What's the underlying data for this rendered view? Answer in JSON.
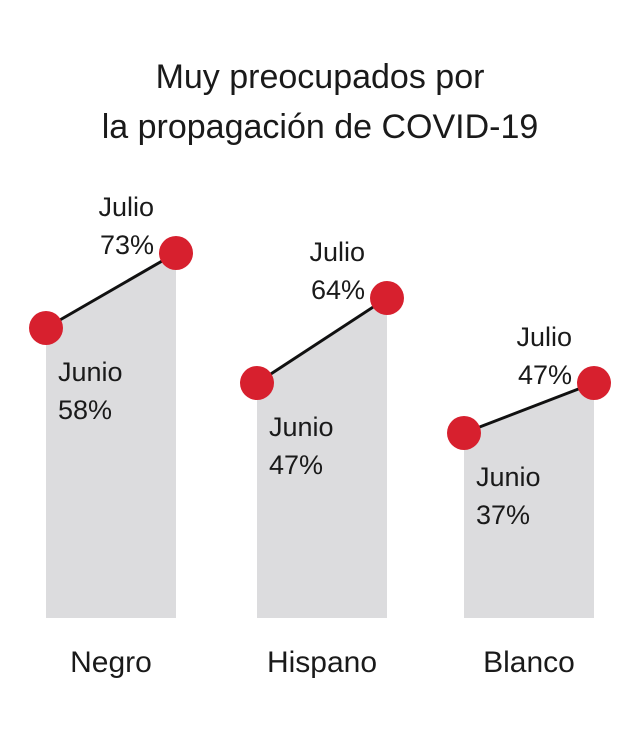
{
  "chart_data": {
    "type": "slope",
    "title_lines": [
      "Muy preocupados por",
      "la propagación de COVID-19"
    ],
    "period_labels": [
      "Junio",
      "Julio"
    ],
    "categories": [
      "Negro",
      "Hispano",
      "Blanco"
    ],
    "series": [
      {
        "name": "Junio",
        "values": [
          58,
          47,
          37
        ]
      },
      {
        "name": "Julio",
        "values": [
          73,
          64,
          47
        ]
      }
    ],
    "value_labels": {
      "Junio": [
        "58%",
        "47%",
        "37%"
      ],
      "Julio": [
        "73%",
        "64%",
        "47%"
      ]
    },
    "unit": "%",
    "ylim": [
      0,
      100
    ],
    "grid": false,
    "legend": "none",
    "colors": {
      "area": "#dcdcde",
      "marker": "#d7202e",
      "line": "#111111",
      "text": "#1a1a1a"
    }
  }
}
